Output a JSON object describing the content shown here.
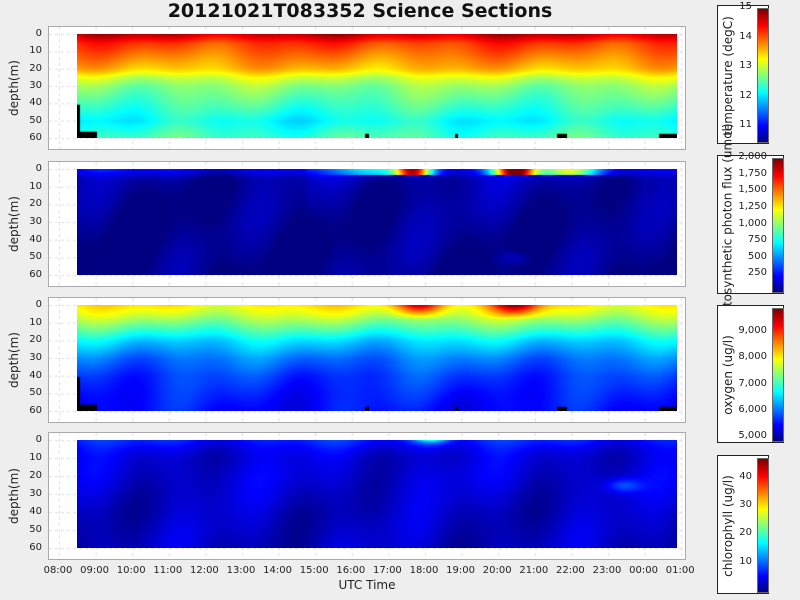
{
  "chart_data": {
    "type": "heatmap",
    "title": "20121021T083352 Science Sections",
    "xlabel": "UTC Time",
    "x_ticks": [
      "08:00",
      "09:00",
      "10:00",
      "11:00",
      "12:00",
      "13:00",
      "14:00",
      "15:00",
      "16:00",
      "17:00",
      "18:00",
      "19:00",
      "20:00",
      "21:00",
      "22:00",
      "23:00",
      "00:00",
      "01:00"
    ],
    "x_range_hours": [
      8.5,
      24.9
    ],
    "y_ticks": [
      "0",
      "10",
      "20",
      "30",
      "40",
      "50",
      "60"
    ],
    "ylim": [
      0,
      60
    ],
    "colormap": "jet",
    "panels": [
      {
        "ylabel": "depth(m)",
        "colorbar_label": "temperature (degC)",
        "colorbar_ticks": [
          "11",
          "12",
          "13",
          "14",
          "15"
        ],
        "clim": [
          10.5,
          15
        ],
        "depths": [
          0,
          5,
          10,
          20,
          25,
          30,
          40,
          50,
          60
        ],
        "profile": [
          14.7,
          14.2,
          14.0,
          13.6,
          13.1,
          12.8,
          12.5,
          12.2,
          12.5
        ]
      },
      {
        "ylabel": "depth(m)",
        "colorbar_label": "photosynthetic photon flux (umol)",
        "colorbar_ticks": [
          "250",
          "500",
          "750",
          "1,000",
          "1,250",
          "1,500",
          "1,750",
          "2,000"
        ],
        "clim": [
          0,
          2000
        ],
        "depths": [
          0,
          5,
          10,
          20,
          30,
          40,
          50,
          60
        ],
        "profile": [
          250,
          70,
          40,
          30,
          20,
          15,
          15,
          10
        ]
      },
      {
        "ylabel": "depth(m)",
        "colorbar_label": "oxygen (ug/l)",
        "colorbar_ticks": [
          "5,000",
          "6,000",
          "7,000",
          "8,000",
          "9,000"
        ],
        "clim": [
          4900,
          9900
        ],
        "depths": [
          0,
          5,
          10,
          20,
          30,
          40,
          50,
          60
        ],
        "profile": [
          8100,
          7800,
          7400,
          6600,
          6100,
          5800,
          5650,
          5550
        ]
      },
      {
        "ylabel": "depth(m)",
        "colorbar_label": "chlorophyll (ug/l)",
        "colorbar_ticks": [
          "10",
          "20",
          "30",
          "40"
        ],
        "clim": [
          0,
          47
        ],
        "depths": [
          0,
          5,
          10,
          20,
          30,
          40,
          50,
          60
        ],
        "profile": [
          7,
          5,
          4,
          4,
          3.5,
          3,
          3,
          3
        ]
      }
    ]
  }
}
